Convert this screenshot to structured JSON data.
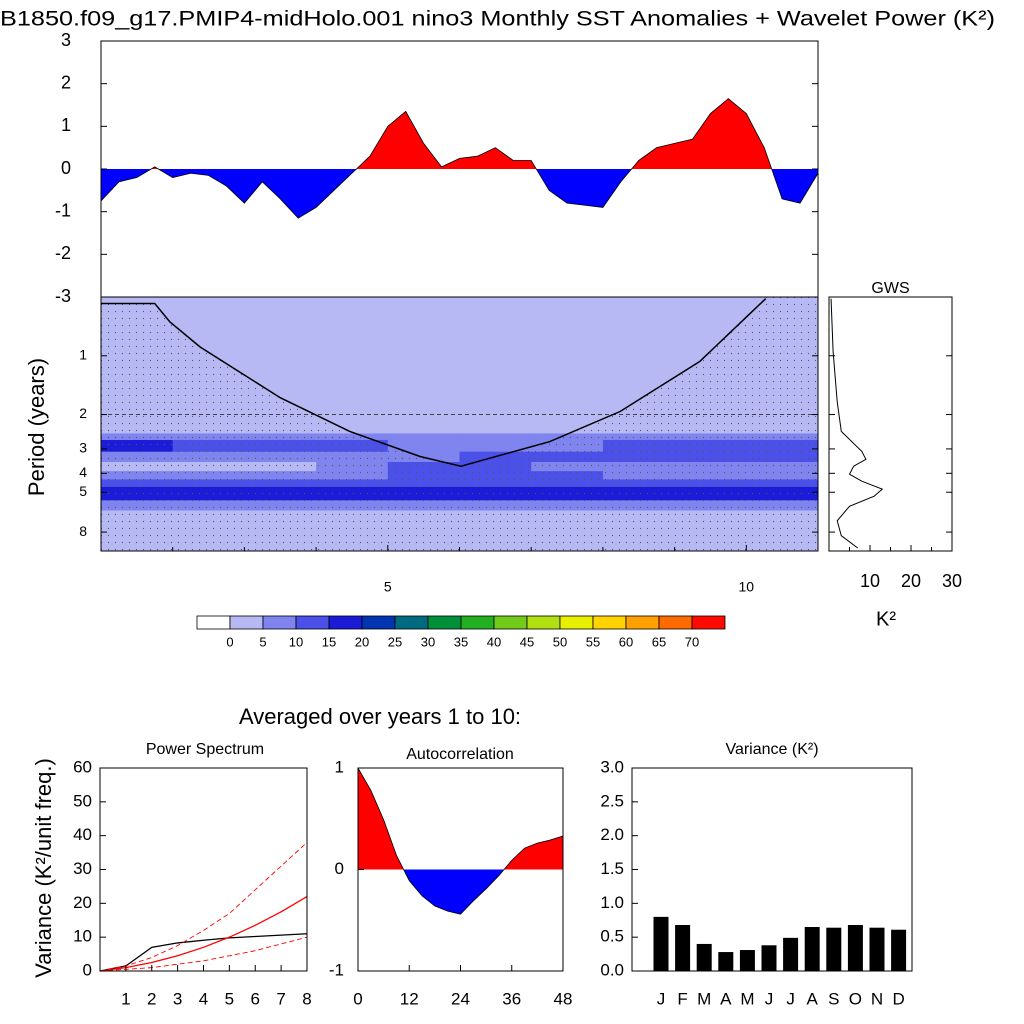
{
  "section_title": "Averaged over years 1 to 10:",
  "chart_data": [
    {
      "type": "area",
      "title": "B1850.f09_g17.PMIP4-midHolo.001 nino3 Monthly SST Anomalies + Wavelet Power (K²)",
      "x": [
        1,
        1.25,
        1.5,
        1.75,
        2,
        2.25,
        2.5,
        2.75,
        3,
        3.25,
        3.5,
        3.75,
        4,
        4.25,
        4.5,
        4.75,
        5,
        5.25,
        5.5,
        5.75,
        6,
        6.25,
        6.5,
        6.75,
        7,
        7.25,
        7.5,
        7.75,
        8,
        8.25,
        8.5,
        8.75,
        9,
        9.25,
        9.5,
        9.75,
        10,
        10.25,
        10.5,
        10.75,
        11
      ],
      "values": [
        -0.75,
        -0.3,
        -0.2,
        0.05,
        -0.2,
        -0.1,
        -0.15,
        -0.4,
        -0.8,
        -0.3,
        -0.7,
        -1.15,
        -0.9,
        -0.5,
        -0.1,
        0.3,
        1.0,
        1.35,
        0.6,
        0.05,
        0.25,
        0.3,
        0.5,
        0.2,
        0.2,
        -0.5,
        -0.8,
        -0.85,
        -0.9,
        -0.3,
        0.2,
        0.5,
        0.6,
        0.7,
        1.3,
        1.65,
        1.3,
        0.5,
        -0.7,
        -0.8,
        -0.1
      ],
      "xlim": [
        1,
        11
      ],
      "ylim": [
        -3,
        3
      ],
      "yticks": [
        -3,
        -2,
        -1,
        0,
        1,
        2,
        3
      ],
      "pos_color": "#ff0000",
      "neg_color": "#0000ff"
    },
    {
      "type": "heatmap",
      "ylabel": "Period (years)",
      "x": [
        1,
        2,
        3,
        4,
        5,
        6,
        7,
        8,
        9,
        10,
        11
      ],
      "periods": [
        0.5,
        2.5,
        2.7,
        3.1,
        3.5,
        3.9,
        4.3,
        4.7,
        5.5,
        6.2,
        10
      ],
      "z": [
        [
          2,
          2,
          2,
          2,
          2,
          2,
          2,
          2,
          2,
          2
        ],
        [
          7,
          7,
          7,
          7,
          7,
          7,
          7,
          7,
          7,
          7
        ],
        [
          15,
          11,
          11,
          11,
          8,
          8,
          8,
          11,
          12,
          12
        ],
        [
          7,
          7,
          7,
          7,
          9,
          11,
          11,
          11,
          11,
          11
        ],
        [
          3,
          3,
          3,
          7,
          11,
          11,
          8,
          7,
          7,
          7
        ],
        [
          7,
          7,
          7,
          8,
          11,
          11,
          11,
          8,
          7,
          7
        ],
        [
          11,
          11,
          11,
          11,
          11,
          11,
          11,
          11,
          11,
          11
        ],
        [
          17,
          17,
          17,
          17,
          17,
          17,
          17,
          17,
          17,
          17
        ],
        [
          9,
          9,
          9,
          9,
          9,
          9,
          9,
          9,
          9,
          9
        ],
        [
          2,
          2,
          2,
          2,
          2,
          2,
          2,
          2,
          2,
          2
        ]
      ],
      "xlim": [
        1,
        11
      ],
      "xticks": [
        5,
        10
      ],
      "xminorticks": [
        2,
        3,
        4,
        6,
        7,
        8,
        9
      ],
      "ylim": [
        0.5,
        10
      ],
      "ylog": true,
      "yreverse": true,
      "yticks": [
        1,
        2,
        3,
        4,
        5,
        8
      ],
      "ref_line": 2,
      "levels": [
        0,
        5,
        10,
        15,
        20,
        25,
        30,
        35,
        40,
        45,
        50,
        55,
        60,
        65,
        70
      ],
      "level_colors": [
        "#ffffff",
        "#b6b9f4",
        "#7f84ee",
        "#4a50e8",
        "#1c1cd8",
        "#0034b0",
        "#006a80",
        "#00903a",
        "#22b022",
        "#70cc18",
        "#b0e010",
        "#e8f000",
        "#ffd200",
        "#ffa000",
        "#ff6a00",
        "#ff0a00"
      ],
      "coi": {
        "x": [
          1,
          1.75,
          1.96,
          2.38,
          3.5,
          4.47,
          5.45,
          6.02,
          7.26,
          8.24,
          9.35,
          10.27
        ],
        "period": [
          0.54,
          0.54,
          0.67,
          0.9,
          1.64,
          2.44,
          3.28,
          3.68,
          2.75,
          1.93,
          1.07,
          0.51
        ]
      }
    },
    {
      "type": "profile",
      "title": "GWS",
      "xlabel": "K²",
      "periods": [
        0.51,
        0.95,
        1.72,
        2.44,
        3.09,
        3.39,
        3.68,
        4.04,
        4.39,
        4.82,
        5.24,
        5.9,
        7.0,
        8.35,
        9.65
      ],
      "values": [
        0.5,
        1,
        2,
        3,
        8,
        9,
        6,
        5,
        8,
        13,
        11,
        5,
        2,
        3,
        7
      ],
      "xlim": [
        0,
        30
      ],
      "xticks": [
        10,
        20,
        30
      ],
      "xminorticks": [
        5,
        15,
        25
      ],
      "ylim": [
        0.5,
        10
      ],
      "ylog": true,
      "yreverse": true,
      "yticks": [
        1,
        2,
        3,
        4,
        5,
        8
      ],
      "color": "#000000"
    },
    {
      "type": "line",
      "title": "Power Spectrum",
      "ylabel": "Variance (K²/unit freq.)",
      "x": [
        0,
        1,
        2,
        3,
        4,
        5,
        6,
        7,
        8
      ],
      "series": [
        {
          "color": "#000000",
          "dash": false,
          "values": [
            0,
            1.5,
            7,
            8.3,
            9.1,
            9.8,
            10.2,
            10.6,
            11
          ]
        },
        {
          "color": "#ff0000",
          "dash": false,
          "values": [
            0,
            1,
            2.5,
            4.5,
            7,
            10,
            13.5,
            17.5,
            22
          ]
        },
        {
          "color": "#ff0000",
          "dash": true,
          "values": [
            0,
            1.5,
            4,
            7.5,
            12,
            17,
            24,
            31,
            38
          ]
        },
        {
          "color": "#ff0000",
          "dash": true,
          "values": [
            0,
            0.5,
            1,
            2,
            3,
            4.5,
            6,
            8,
            10
          ]
        }
      ],
      "xlim": [
        0,
        8
      ],
      "xticks": [
        1,
        2,
        3,
        4,
        5,
        6,
        7,
        8
      ],
      "ylim": [
        0,
        60
      ],
      "yticks": [
        0,
        10,
        20,
        30,
        40,
        50,
        60
      ]
    },
    {
      "type": "area",
      "title": "Autocorrelation",
      "x": [
        0,
        3,
        6,
        9,
        12,
        15,
        18,
        21,
        24,
        27,
        30,
        33,
        36,
        39,
        42,
        45,
        48
      ],
      "values": [
        1.0,
        0.78,
        0.49,
        0.14,
        -0.11,
        -0.26,
        -0.36,
        -0.41,
        -0.44,
        -0.31,
        -0.19,
        -0.06,
        0.09,
        0.21,
        0.26,
        0.29,
        0.33
      ],
      "xlim": [
        0,
        48
      ],
      "xticks": [
        0,
        12,
        24,
        36,
        48
      ],
      "ylim": [
        -1,
        1
      ],
      "yticks": [
        -1,
        0,
        1
      ],
      "pos_color": "#ff0000",
      "neg_color": "#0000ff"
    },
    {
      "type": "bar",
      "title": "Variance (K²)",
      "categories": [
        "J",
        "F",
        "M",
        "A",
        "M",
        "J",
        "J",
        "A",
        "S",
        "O",
        "N",
        "D"
      ],
      "values": [
        0.8,
        0.68,
        0.4,
        0.28,
        0.31,
        0.38,
        0.49,
        0.65,
        0.64,
        0.68,
        0.64,
        0.61
      ],
      "ylim": [
        0,
        3
      ],
      "yticks": [
        {
          "value": 0,
          "label": "0.0"
        },
        0.5,
        {
          "value": 1,
          "label": "1.0"
        },
        1.5,
        {
          "value": 2,
          "label": "2.0"
        },
        2.5,
        {
          "value": 3,
          "label": "3.0"
        }
      ],
      "color": "#000000"
    }
  ]
}
